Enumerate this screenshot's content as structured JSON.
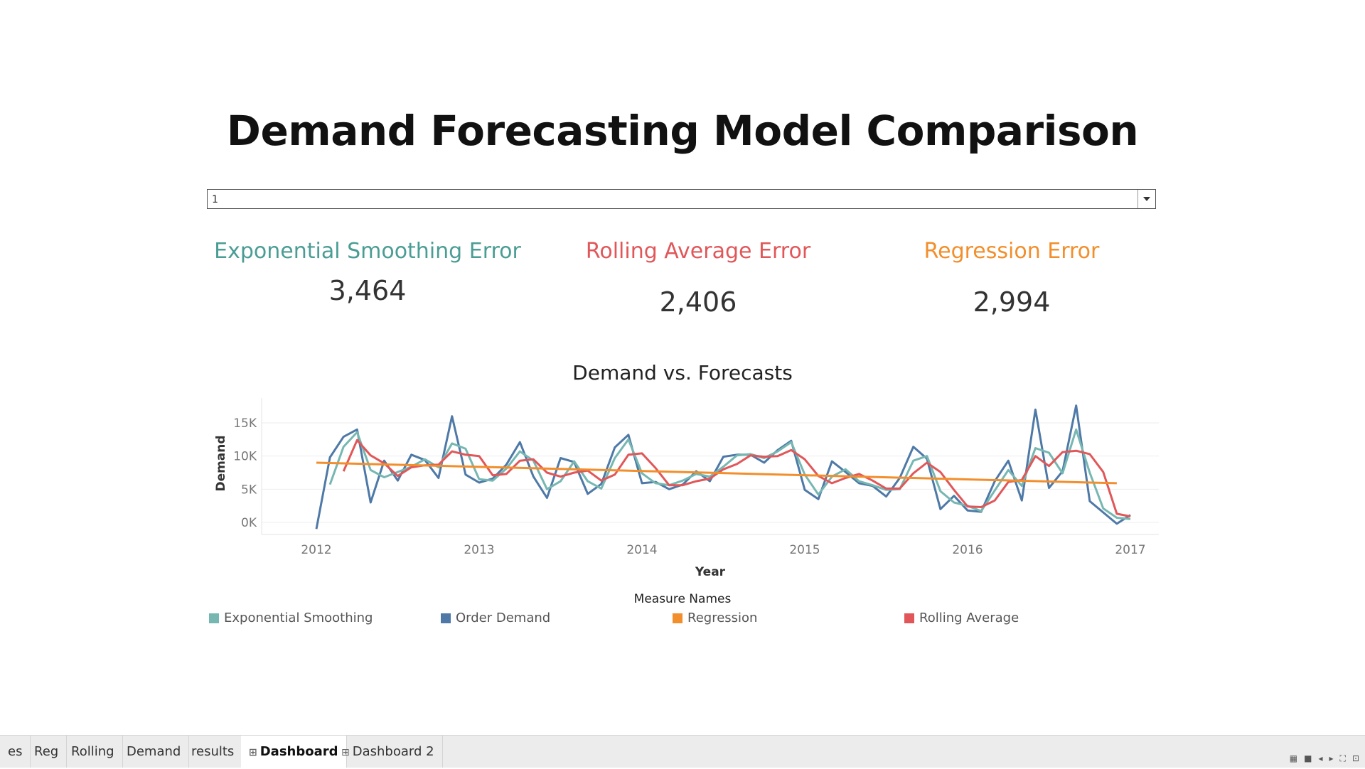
{
  "dashboard_title": "Demand Forecasting Model Comparison",
  "filter": {
    "value": "1"
  },
  "kpis": [
    {
      "title": "Exponential Smoothing Error",
      "value": "3,464",
      "color": "#4a9d94"
    },
    {
      "title": "Rolling Average Error",
      "value": "2,406",
      "color": "#e15759"
    },
    {
      "title": "Regression Error",
      "value": "2,994",
      "color": "#f28e2b"
    }
  ],
  "chart_title": "Demand vs. Forecasts",
  "chart_data": {
    "type": "line",
    "title": "Demand vs. Forecasts",
    "xlabel": "Year",
    "ylabel": "Demand",
    "x_start": "2012-01",
    "x_ticks": [
      "2012",
      "2013",
      "2014",
      "2015",
      "2016",
      "2017"
    ],
    "y_ticks": [
      "15K",
      "10K",
      "5K",
      "0K"
    ],
    "grid": true,
    "series": [
      {
        "name": "Order Demand",
        "color": "#4e79a7",
        "values": [
          -1000,
          9800,
          12900,
          14000,
          3000,
          9300,
          6300,
          10200,
          9400,
          6700,
          16000,
          7200,
          6000,
          6600,
          8700,
          12100,
          6900,
          3700,
          9700,
          9100,
          4300,
          5800,
          11300,
          13200,
          5900,
          6100,
          5000,
          5700,
          7700,
          6200,
          9900,
          10200,
          10200,
          9000,
          10900,
          12300,
          4900,
          3500,
          9200,
          7600,
          5900,
          5500,
          3900,
          6700,
          11400,
          9600,
          2000,
          4000,
          1800,
          1600,
          6200,
          9300,
          3300,
          17000,
          5200,
          7700,
          17600,
          3200,
          1500,
          -200,
          1100
        ]
      },
      {
        "name": "Exponential Smoothing",
        "color": "#76b7b2",
        "values": [
          null,
          5700,
          11400,
          13600,
          7900,
          6800,
          7600,
          8400,
          9500,
          8300,
          11900,
          11100,
          6500,
          6300,
          8100,
          10700,
          9300,
          5000,
          6200,
          9200,
          6200,
          5100,
          9700,
          12500,
          7400,
          5900,
          5600,
          6300,
          7300,
          6900,
          8400,
          10100,
          10300,
          9700,
          10700,
          12100,
          7200,
          4200,
          6900,
          8000,
          6200,
          5600,
          4900,
          5000,
          9300,
          10000,
          4700,
          3000,
          2500,
          1700,
          4800,
          7900,
          5500,
          11200,
          10500,
          7400,
          14000,
          7500,
          2100,
          700,
          500
        ]
      },
      {
        "name": "Rolling Average",
        "color": "#e15759",
        "values": [
          null,
          null,
          7700,
          12400,
          10100,
          8900,
          7000,
          8300,
          8600,
          8700,
          10700,
          10200,
          10000,
          7100,
          7300,
          9300,
          9500,
          7500,
          6900,
          7500,
          7800,
          6300,
          7200,
          10200,
          10400,
          8200,
          5600,
          5600,
          6200,
          6600,
          8000,
          8800,
          10100,
          9900,
          10000,
          10900,
          9500,
          7000,
          5900,
          6700,
          7300,
          6300,
          5100,
          5100,
          7400,
          9000,
          7600,
          4900,
          2400,
          2300,
          3300,
          6100,
          6400,
          10000,
          8500,
          10600,
          10800,
          10300,
          7600,
          1300,
          900
        ]
      },
      {
        "name": "Regression",
        "color": "#f28e2b",
        "x_range": [
          "2012-01",
          "2016-12"
        ],
        "values": [
          9000,
          5900
        ]
      }
    ]
  },
  "legend": {
    "title": "Measure Names",
    "items": [
      {
        "label": "Exponential Smoothing",
        "color": "#76b7b2"
      },
      {
        "label": "Order Demand",
        "color": "#4e79a7"
      },
      {
        "label": "Regression",
        "color": "#f28e2b"
      },
      {
        "label": "Rolling Average",
        "color": "#e15759"
      }
    ]
  },
  "tabs": [
    {
      "label": "es",
      "icon": ""
    },
    {
      "label": "Reg",
      "icon": ""
    },
    {
      "label": "Rolling",
      "icon": ""
    },
    {
      "label": "Demand",
      "icon": ""
    },
    {
      "label": "results",
      "icon": ""
    },
    {
      "label": "Dashboard",
      "icon": "dashboard-icon",
      "active": true
    },
    {
      "label": "Dashboard 2",
      "icon": "dashboard-icon"
    }
  ]
}
